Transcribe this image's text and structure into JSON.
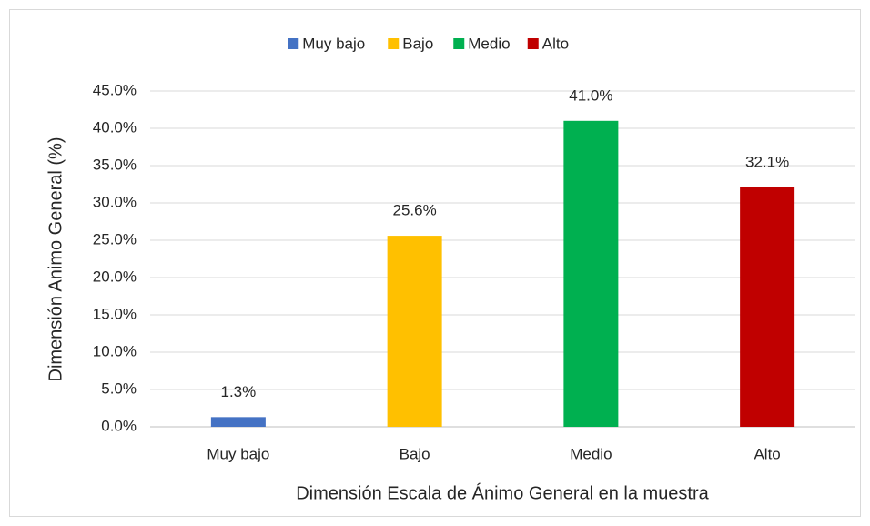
{
  "chart_data": {
    "type": "bar",
    "categories": [
      "Muy bajo",
      "Bajo",
      "Medio",
      "Alto"
    ],
    "series": [
      {
        "name": "Muy bajo",
        "color": "#4472c4",
        "values": [
          1.3,
          null,
          null,
          null
        ],
        "value_labels": [
          "1.3%",
          null,
          null,
          null
        ]
      },
      {
        "name": "Bajo",
        "color": "#ffc000",
        "values": [
          null,
          25.6,
          null,
          null
        ],
        "value_labels": [
          null,
          "25.6%",
          null,
          null
        ]
      },
      {
        "name": "Medio",
        "color": "#00b050",
        "values": [
          null,
          null,
          41.0,
          null
        ],
        "value_labels": [
          null,
          null,
          "41.0%",
          null
        ]
      },
      {
        "name": "Alto",
        "color": "#c00000",
        "values": [
          null,
          null,
          null,
          32.1
        ],
        "value_labels": [
          null,
          null,
          null,
          "32.1%"
        ]
      }
    ],
    "x_label": "Dimensión  Escala  de  Ánimo General en la muestra",
    "y_label": "Dimensión  Animo General (%)",
    "ylim": [
      0,
      45
    ],
    "yticks": [
      {
        "value": 0,
        "label": "0.0%"
      },
      {
        "value": 5,
        "label": "5.0%"
      },
      {
        "value": 10,
        "label": "10.0%"
      },
      {
        "value": 15,
        "label": "15.0%"
      },
      {
        "value": 20,
        "label": "20.0%"
      },
      {
        "value": 25,
        "label": "25.0%"
      },
      {
        "value": 30,
        "label": "30.0%"
      },
      {
        "value": 35,
        "label": "35.0%"
      },
      {
        "value": 40,
        "label": "40.0%"
      },
      {
        "value": 45,
        "label": "45.0%"
      }
    ],
    "grid": true,
    "legend": "top"
  }
}
